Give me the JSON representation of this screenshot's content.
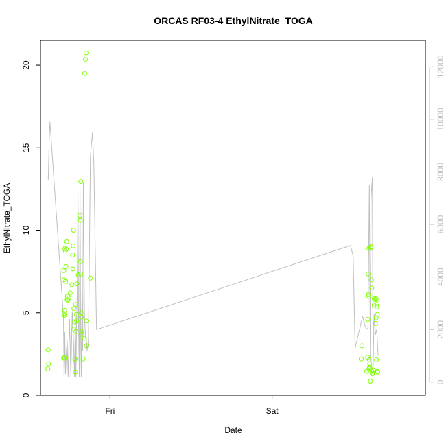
{
  "chart_data": {
    "type": "scatter",
    "title": "ORCAS RF03-4 EthylNitrate_TOGA",
    "xlabel": "Date",
    "ylabel": "EthylNitrate_TOGA",
    "x_unit": "hours since Thu 00:00",
    "xlim": [
      13.7,
      70.7
    ],
    "x_ticks": [
      {
        "value": 24,
        "label": "Fri"
      },
      {
        "value": 48,
        "label": "Sat"
      }
    ],
    "ylim": [
      0,
      21.5
    ],
    "y_ticks": [
      0,
      5,
      10,
      15,
      20
    ],
    "y2lim": [
      -500,
      13000
    ],
    "y2_ticks": [
      0,
      2000,
      4000,
      6000,
      8000,
      10000,
      12000
    ],
    "grid": false,
    "legend": "none",
    "colors": {
      "points": "#7fff00",
      "line": "#bfbfbf",
      "axis": "#000000",
      "right_axis": "#bfbfbf"
    },
    "series": [
      {
        "kind": "points",
        "axis": "left",
        "x": [
          14.85,
          14.9,
          14.8,
          17.12,
          17.15,
          17.18,
          17.2,
          17.25,
          17.28,
          17.32,
          17.38,
          17.43,
          17.47,
          17.53,
          17.6,
          17.65,
          17.68,
          17.73,
          18.35,
          18.45,
          18.5,
          18.55,
          18.6,
          18.62,
          18.75,
          18.8,
          18.82,
          18.87,
          18.95,
          19.0,
          19.05,
          19.55,
          19.6,
          19.62,
          19.65,
          19.68,
          19.7,
          19.73,
          19.75,
          19.78,
          20.25,
          20.35,
          20.45,
          20.48,
          20.51,
          61.3,
          62.15,
          62.18,
          62.22,
          62.25,
          62.3,
          62.33,
          62.37,
          62.42,
          62.46,
          62.5,
          62.55,
          62.6,
          62.65,
          62.7,
          62.75,
          62.8,
          62.85,
          62.9,
          63.1,
          63.12,
          63.2,
          63.25,
          63.3,
          63.4,
          63.45,
          63.5,
          63.55,
          63.6,
          63.65
        ],
        "y": [
          2.75,
          1.9,
          1.6,
          2.25,
          7.55,
          7.0,
          4.95,
          4.85,
          5.15,
          8.9,
          8.75,
          6.9,
          7.8,
          8.85,
          9.3,
          5.8,
          6.0,
          5.75,
          6.7,
          8.5,
          7.65,
          9.05,
          10.0,
          4.0,
          4.45,
          2.2,
          2.2,
          1.4,
          3.85,
          4.9,
          4.5,
          10.9,
          10.6,
          8.1,
          7.35,
          12.95,
          5.0,
          3.7,
          4.75,
          3.85,
          19.5,
          20.35,
          20.75,
          4.5,
          3.0,
          3.0,
          2.3,
          4.6,
          7.35,
          6.1,
          6.0,
          8.9,
          1.6,
          1.7,
          1.9,
          1.65,
          0.85,
          8.95,
          9.0,
          7.0,
          6.5,
          1.45,
          1.3,
          1.35,
          5.45,
          5.85,
          5.7,
          5.8,
          4.35,
          4.7,
          2.15,
          5.35,
          5.6,
          4.9,
          1.4
        ],
        "x_extra": [
          17.2,
          17.3,
          17.9,
          18.1,
          18.65,
          18.9,
          19.1,
          19.3,
          20.0,
          20.2,
          21.1,
          61.2,
          62.0,
          62.4,
          63.0,
          63.4,
          63.6
        ],
        "y_extra": [
          2.25,
          2.25,
          5.9,
          6.2,
          5.25,
          5.5,
          6.75,
          7.3,
          2.2,
          3.45,
          7.1,
          2.2,
          1.45,
          2.15,
          1.5,
          5.85,
          1.45
        ]
      },
      {
        "kind": "line",
        "axis": "right",
        "x": [
          14.85,
          15.0,
          15.1,
          17.1,
          17.2,
          17.3,
          17.4,
          17.55,
          17.65,
          17.8,
          18.0,
          18.2,
          18.4,
          18.6,
          18.75,
          18.85,
          18.95,
          19.05,
          19.15,
          19.25,
          19.35,
          19.45,
          19.55,
          19.65,
          19.75,
          19.85,
          19.95,
          20.05,
          20.2,
          20.35,
          20.5,
          20.6,
          20.8,
          21.1,
          21.4,
          21.6,
          22.0,
          59.6,
          60.0,
          60.3,
          61.4,
          61.8,
          62.2,
          62.4,
          62.55,
          62.65,
          62.85,
          62.95,
          63.1,
          63.3,
          63.5,
          63.7
        ],
        "y": [
          7700,
          9300,
          9900,
          2500,
          200,
          1900,
          300,
          1200,
          1600,
          200,
          2400,
          200,
          2700,
          1500,
          200,
          2600,
          200,
          2500,
          3300,
          7200,
          2100,
          200,
          7400,
          1800,
          200,
          3500,
          1200,
          7600,
          2700,
          1700,
          1600,
          1200,
          1600,
          8600,
          9500,
          8300,
          2000,
          5200,
          4800,
          1300,
          2500,
          2100,
          2000,
          7500,
          800,
          7000,
          7800,
          500,
          2600,
          1800,
          2000,
          1000
        ]
      }
    ]
  }
}
